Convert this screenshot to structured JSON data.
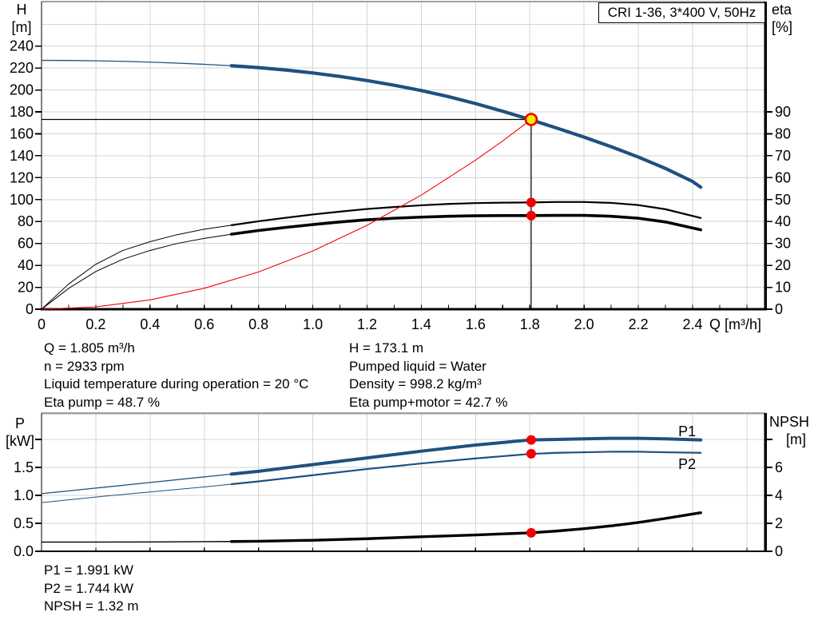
{
  "header": {
    "title_box": "CRI 1-36, 3*400 V, 50Hz"
  },
  "colors": {
    "curve_blue": "#1e5180",
    "curve_black": "#000000",
    "system_red": "#f40000",
    "marker_red": "#f40000",
    "duty_fill": "#ffe800",
    "duty_ring": "#e80000",
    "grid": "#d4d4d4",
    "frame_gray": "#a2a2a2",
    "axis_black": "#000000"
  },
  "info": {
    "top_left": [
      "Q = 1.805 m³/h",
      "n = 2933 rpm",
      "Liquid temperature during operation = 20 °C",
      "Eta pump = 48.7 %"
    ],
    "top_right": [
      "H = 173.1 m",
      "Pumped liquid = Water",
      "Density = 998.2 kg/m³",
      "Eta pump+motor = 42.7 %"
    ],
    "bottom": [
      "P1 = 1.991 kW",
      "P2 = 1.744 kW",
      "NPSH = 1.32 m"
    ]
  },
  "chart_data": [
    {
      "type": "line",
      "name": "qh-eta-chart",
      "title": "CRI 1-36, 3*400 V, 50Hz",
      "x_axis": {
        "label": "Q [m³/h]",
        "min": 0,
        "max": 2.668,
        "ticks": [
          0,
          0.2,
          0.4,
          0.6,
          0.8,
          1.0,
          1.2,
          1.4,
          1.6,
          1.8,
          2.0,
          2.2,
          2.4
        ],
        "tick_labels": [
          "0",
          "0.2",
          "0.4",
          "0.6",
          "0.8",
          "1.0",
          "1.2",
          "1.4",
          "1.6",
          "1.8",
          "2.0",
          "2.2",
          "2.4"
        ]
      },
      "y_left": {
        "label": "H [m]",
        "label_lines": [
          "H",
          "[m]"
        ],
        "min": 0,
        "max": 280.6,
        "ticks": [
          0,
          20,
          40,
          60,
          80,
          100,
          120,
          140,
          160,
          180,
          200,
          220,
          240
        ],
        "tick_labels": [
          "0",
          "20",
          "40",
          "60",
          "80",
          "100",
          "120",
          "140",
          "160",
          "180",
          "200",
          "220",
          "240"
        ],
        "extra_ticks": []
      },
      "y_right": {
        "label": "eta [%]",
        "label_lines": [
          "eta",
          "[%]"
        ],
        "min": 0,
        "max": 140.3,
        "ticks": [
          0,
          10,
          20,
          30,
          40,
          50,
          60,
          70,
          80,
          90
        ],
        "tick_labels": [
          "0",
          "10",
          "20",
          "30",
          "40",
          "50",
          "60",
          "70",
          "80",
          "90"
        ],
        "extra_ticks": []
      },
      "series": [
        {
          "name": "pump-curve",
          "label": "QH",
          "axis": "left",
          "color_key": "curve_blue",
          "thick_from": 0.7,
          "width_thin": 1.3,
          "width_thick": 4.2,
          "points": [
            [
              0,
              227
            ],
            [
              0.1,
              226.9
            ],
            [
              0.2,
              226.6
            ],
            [
              0.3,
              226.1
            ],
            [
              0.4,
              225.4
            ],
            [
              0.5,
              224.5
            ],
            [
              0.6,
              223.4
            ],
            [
              0.7,
              222.1
            ],
            [
              0.8,
              220.4
            ],
            [
              0.9,
              218.2
            ],
            [
              1.0,
              215.5
            ],
            [
              1.1,
              212.3
            ],
            [
              1.2,
              208.6
            ],
            [
              1.3,
              204.3
            ],
            [
              1.4,
              199.5
            ],
            [
              1.5,
              193.9
            ],
            [
              1.6,
              187.6
            ],
            [
              1.7,
              180.6
            ],
            [
              1.8,
              173.1
            ],
            [
              1.9,
              165.2
            ],
            [
              2.0,
              157.0
            ],
            [
              2.1,
              148.2
            ],
            [
              2.2,
              138.8
            ],
            [
              2.3,
              128.4
            ],
            [
              2.4,
              116.5
            ],
            [
              2.43,
              111.3
            ]
          ]
        },
        {
          "name": "eta-pump-curve",
          "label": "Eta pump",
          "axis": "right",
          "color_key": "curve_black",
          "thick_from": 0.64,
          "width_thin": 1,
          "width_thick": 2.2,
          "points": [
            [
              0,
              0
            ],
            [
              0.1,
              11.5
            ],
            [
              0.2,
              20.5
            ],
            [
              0.3,
              26.8
            ],
            [
              0.4,
              30.8
            ],
            [
              0.5,
              34.0
            ],
            [
              0.6,
              36.5
            ],
            [
              0.7,
              38.3
            ],
            [
              0.8,
              40.1
            ],
            [
              0.9,
              41.7
            ],
            [
              1.0,
              43.2
            ],
            [
              1.1,
              44.5
            ],
            [
              1.2,
              45.7
            ],
            [
              1.3,
              46.6
            ],
            [
              1.4,
              47.4
            ],
            [
              1.5,
              48.0
            ],
            [
              1.6,
              48.4
            ],
            [
              1.7,
              48.6
            ],
            [
              1.8,
              48.7
            ],
            [
              1.9,
              48.9
            ],
            [
              2.0,
              48.9
            ],
            [
              2.1,
              48.5
            ],
            [
              2.2,
              47.5
            ],
            [
              2.3,
              45.6
            ],
            [
              2.43,
              41.6
            ]
          ]
        },
        {
          "name": "eta-pump-motor-curve",
          "label": "Eta pump+motor",
          "axis": "right",
          "color_key": "curve_black",
          "thick_from": 0.7,
          "width_thin": 1,
          "width_thick": 3.6,
          "points": [
            [
              0,
              0
            ],
            [
              0.1,
              9.5
            ],
            [
              0.2,
              17.2
            ],
            [
              0.3,
              22.8
            ],
            [
              0.4,
              26.8
            ],
            [
              0.5,
              30.0
            ],
            [
              0.6,
              32.3
            ],
            [
              0.7,
              34.2
            ],
            [
              0.8,
              35.9
            ],
            [
              0.9,
              37.3
            ],
            [
              1.0,
              38.6
            ],
            [
              1.1,
              39.8
            ],
            [
              1.2,
              40.8
            ],
            [
              1.3,
              41.5
            ],
            [
              1.4,
              42.0
            ],
            [
              1.5,
              42.4
            ],
            [
              1.6,
              42.6
            ],
            [
              1.7,
              42.7
            ],
            [
              1.8,
              42.7
            ],
            [
              1.9,
              42.8
            ],
            [
              2.0,
              42.8
            ],
            [
              2.1,
              42.4
            ],
            [
              2.2,
              41.5
            ],
            [
              2.3,
              39.8
            ],
            [
              2.43,
              36.2
            ]
          ]
        },
        {
          "name": "system-curve",
          "label": "System curve",
          "axis": "left",
          "color_key": "system_red",
          "thick_from": 99,
          "width_thin": 1.1,
          "width_thick": 1.1,
          "points": [
            [
              0,
              0
            ],
            [
              0.2,
              2.1
            ],
            [
              0.4,
              8.5
            ],
            [
              0.6,
              19.1
            ],
            [
              0.8,
              34.0
            ],
            [
              1.0,
              53.1
            ],
            [
              1.2,
              76.5
            ],
            [
              1.4,
              104.1
            ],
            [
              1.6,
              136.0
            ],
            [
              1.7,
              153.5
            ],
            [
              1.805,
              173.1
            ]
          ]
        }
      ],
      "duty_point": {
        "q": 1.805,
        "h": 173.1
      },
      "markers": [
        {
          "q": 1.805,
          "value": 48.7,
          "axis": "right"
        },
        {
          "q": 1.805,
          "value": 42.7,
          "axis": "right"
        }
      ],
      "crosshair": {
        "q": 1.805,
        "h": 173.1
      },
      "grid": true
    },
    {
      "type": "line",
      "name": "power-npsh-chart",
      "x_axis": {
        "label": "",
        "min": 0,
        "max": 2.668,
        "ticks": [
          0,
          0.2,
          0.4,
          0.6,
          0.8,
          1.0,
          1.2,
          1.4,
          1.6,
          1.8,
          2.0,
          2.2,
          2.4
        ],
        "tick_labels": []
      },
      "y_left": {
        "label": "P [kW]",
        "label_lines": [
          "P",
          "[kW]"
        ],
        "min": 0,
        "max": 2.471,
        "ticks": [
          0,
          0.5,
          1.0,
          1.5
        ],
        "tick_labels": [
          "0.0",
          "0.5",
          "1.0",
          "1.5"
        ],
        "extra_ticks": [
          2.0
        ]
      },
      "y_right": {
        "label": "NPSH [m]",
        "label_lines": [
          "NPSH",
          "[m]"
        ],
        "min": 0,
        "max": 9.886,
        "ticks": [
          0,
          2,
          4,
          6
        ],
        "tick_labels": [
          "0",
          "2",
          "4",
          "6"
        ],
        "extra_ticks": [
          8
        ]
      },
      "series": [
        {
          "name": "p1-curve",
          "label": "P1",
          "axis": "left",
          "color_key": "curve_blue",
          "thick_from": 0.7,
          "width_thin": 1.3,
          "width_thick": 4,
          "points": [
            [
              0,
              1.03
            ],
            [
              0.2,
              1.13
            ],
            [
              0.4,
              1.23
            ],
            [
              0.6,
              1.33
            ],
            [
              0.7,
              1.38
            ],
            [
              0.8,
              1.43
            ],
            [
              1.0,
              1.55
            ],
            [
              1.2,
              1.67
            ],
            [
              1.4,
              1.79
            ],
            [
              1.6,
              1.9
            ],
            [
              1.8,
              1.99
            ],
            [
              1.9,
              2.0
            ],
            [
              2.0,
              2.01
            ],
            [
              2.1,
              2.02
            ],
            [
              2.2,
              2.02
            ],
            [
              2.3,
              2.01
            ],
            [
              2.43,
              1.99
            ]
          ]
        },
        {
          "name": "p2-curve",
          "label": "P2",
          "axis": "left",
          "color_key": "curve_blue",
          "thick_from": 0.7,
          "width_thin": 1,
          "width_thick": 2.2,
          "points": [
            [
              0,
              0.87
            ],
            [
              0.2,
              0.97
            ],
            [
              0.4,
              1.06
            ],
            [
              0.6,
              1.15
            ],
            [
              0.7,
              1.2
            ],
            [
              0.8,
              1.25
            ],
            [
              1.0,
              1.36
            ],
            [
              1.2,
              1.47
            ],
            [
              1.4,
              1.57
            ],
            [
              1.6,
              1.66
            ],
            [
              1.8,
              1.74
            ],
            [
              1.9,
              1.76
            ],
            [
              2.0,
              1.77
            ],
            [
              2.1,
              1.78
            ],
            [
              2.2,
              1.78
            ],
            [
              2.3,
              1.77
            ],
            [
              2.43,
              1.76
            ]
          ]
        },
        {
          "name": "npsh-curve",
          "label": "NPSH",
          "axis": "right",
          "color_key": "curve_black",
          "thick_from": 0.65,
          "width_thin": 1.4,
          "width_thick": 3.4,
          "points": [
            [
              0,
              0.66
            ],
            [
              0.2,
              0.66
            ],
            [
              0.4,
              0.67
            ],
            [
              0.6,
              0.69
            ],
            [
              0.7,
              0.7
            ],
            [
              0.8,
              0.72
            ],
            [
              1.0,
              0.79
            ],
            [
              1.2,
              0.9
            ],
            [
              1.4,
              1.04
            ],
            [
              1.6,
              1.17
            ],
            [
              1.8,
              1.32
            ],
            [
              1.9,
              1.45
            ],
            [
              2.0,
              1.62
            ],
            [
              2.1,
              1.82
            ],
            [
              2.2,
              2.06
            ],
            [
              2.3,
              2.35
            ],
            [
              2.43,
              2.76
            ]
          ]
        }
      ],
      "markers": [
        {
          "q": 1.805,
          "value": 1.991,
          "axis": "left"
        },
        {
          "q": 1.805,
          "value": 1.744,
          "axis": "left"
        },
        {
          "q": 1.805,
          "value": 1.32,
          "axis": "right"
        }
      ],
      "series_labels": [
        {
          "text": "P1",
          "q": 2.38,
          "value": 2.06,
          "axis": "left",
          "color_key": "curve_blue"
        },
        {
          "text": "P2",
          "q": 2.38,
          "value": 1.47,
          "axis": "left",
          "color_key": "curve_blue"
        }
      ],
      "grid": true
    }
  ]
}
